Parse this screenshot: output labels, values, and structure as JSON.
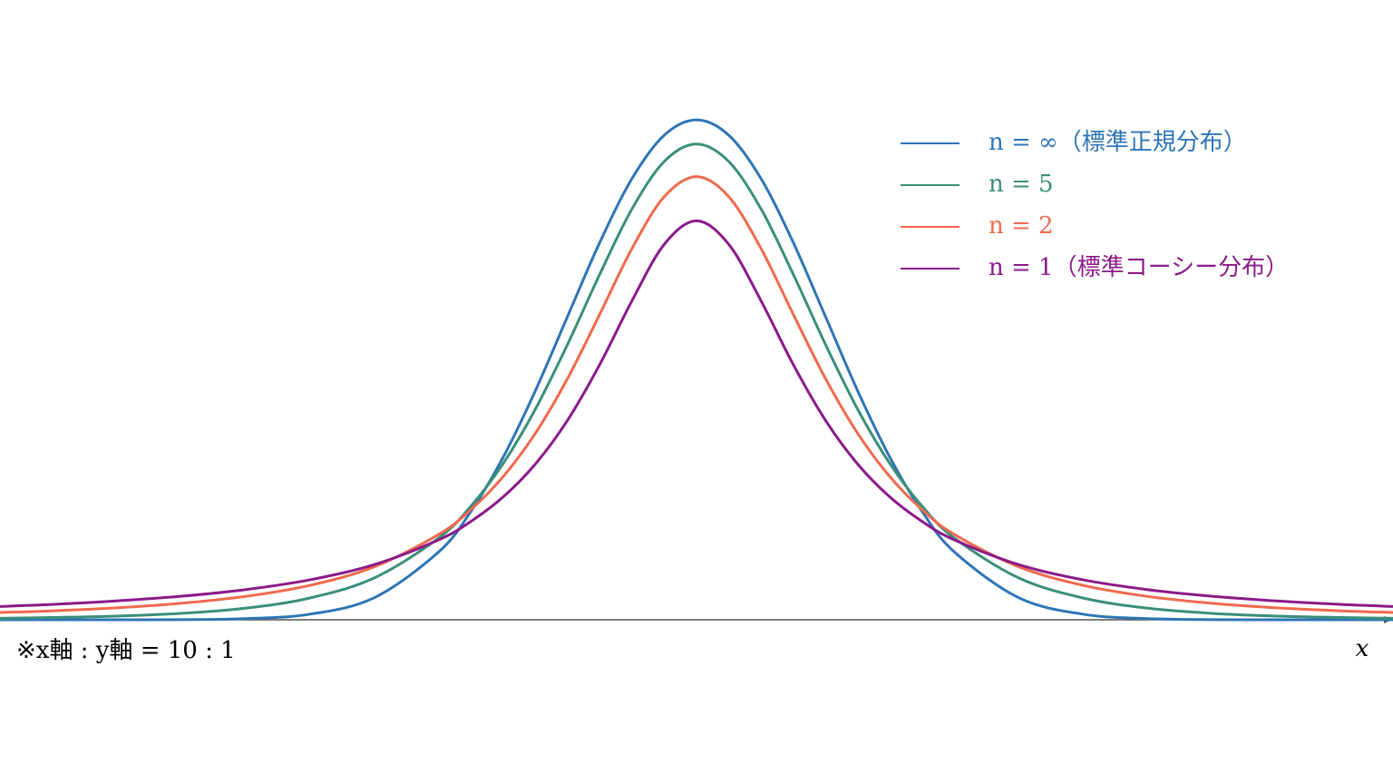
{
  "chart_data": {
    "type": "line",
    "annotation": "※x軸 : y軸 = 10 : 1",
    "x_label": "x",
    "xlim": [
      -5.4,
      5.4
    ],
    "ylim": [
      0,
      0.5
    ],
    "grid": false,
    "legend": "upper right",
    "x": [
      -5.4,
      -5,
      -4.5,
      -4,
      -3.5,
      -3,
      -2.5,
      -2,
      -1.75,
      -1.5,
      -1.25,
      -1,
      -0.75,
      -0.5,
      -0.25,
      0,
      0.25,
      0.5,
      0.75,
      1,
      1.25,
      1.5,
      1.75,
      2,
      2.5,
      3,
      3.5,
      4,
      4.5,
      5,
      5.4
    ],
    "series": [
      {
        "name": "n = ∞（標準正規分布）",
        "color": "#2e75b6",
        "values": [
          0.0,
          0.0,
          0.0,
          0.0001,
          0.0009,
          0.0044,
          0.0175,
          0.054,
          0.0863,
          0.1295,
          0.1826,
          0.242,
          0.3011,
          0.3521,
          0.3867,
          0.3989,
          0.3867,
          0.3521,
          0.3011,
          0.242,
          0.1826,
          0.1295,
          0.0863,
          0.054,
          0.0175,
          0.0044,
          0.0009,
          0.0001,
          0.0,
          0.0,
          0.0
        ]
      },
      {
        "name": "n = 5",
        "color": "#3a8f7a",
        "values": [
          0.0012,
          0.0018,
          0.0029,
          0.0051,
          0.0092,
          0.0173,
          0.0333,
          0.0651,
          0.0905,
          0.1245,
          0.1679,
          0.2197,
          0.2757,
          0.3279,
          0.3657,
          0.3796,
          0.3657,
          0.3279,
          0.2757,
          0.2197,
          0.1679,
          0.1245,
          0.0905,
          0.0651,
          0.0333,
          0.0173,
          0.0092,
          0.0051,
          0.0029,
          0.0018,
          0.0012
        ]
      },
      {
        "name": "n = 2",
        "color": "#f0694d",
        "values": [
          0.0058,
          0.0071,
          0.0095,
          0.0131,
          0.0186,
          0.0274,
          0.0422,
          0.068,
          0.0878,
          0.1141,
          0.1487,
          0.1925,
          0.2438,
          0.2963,
          0.3376,
          0.3536,
          0.3376,
          0.2963,
          0.2438,
          0.1925,
          0.1487,
          0.1141,
          0.0878,
          0.068,
          0.0422,
          0.0274,
          0.0186,
          0.0131,
          0.0095,
          0.0071,
          0.0058
        ]
      },
      {
        "name": "n = 1（標準コーシー分布）",
        "color": "#8b1a89",
        "values": [
          0.0106,
          0.0122,
          0.015,
          0.0187,
          0.024,
          0.0318,
          0.0439,
          0.0637,
          0.0784,
          0.0979,
          0.1242,
          0.1592,
          0.2037,
          0.2546,
          0.2996,
          0.3183,
          0.2996,
          0.2546,
          0.2037,
          0.1592,
          0.1242,
          0.0979,
          0.0784,
          0.0637,
          0.0439,
          0.0318,
          0.024,
          0.0187,
          0.015,
          0.0122,
          0.0106
        ]
      }
    ]
  }
}
